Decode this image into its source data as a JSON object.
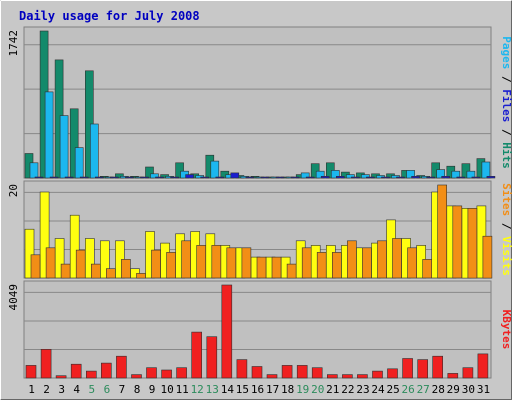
{
  "chart_data": {
    "type": "bar",
    "title": "Daily usage for July 2008",
    "categories": [
      "1",
      "2",
      "3",
      "4",
      "5",
      "6",
      "7",
      "8",
      "9",
      "10",
      "11",
      "12",
      "13",
      "14",
      "15",
      "16",
      "17",
      "18",
      "19",
      "20",
      "21",
      "22",
      "23",
      "24",
      "25",
      "26",
      "27",
      "28",
      "29",
      "30",
      "31"
    ],
    "weekend_days": [
      "5",
      "6",
      "12",
      "13",
      "19",
      "20",
      "26",
      "27"
    ],
    "panels": [
      {
        "id": "hits-files-pages",
        "ymax_label": "1742",
        "ymax": 1742,
        "axis_labels": [
          "Pages",
          "Files",
          "Hits"
        ],
        "series": [
          {
            "name": "Hits",
            "color": "#138a6b",
            "values": [
              290,
              1742,
              1400,
              820,
              1270,
              20,
              50,
              20,
              130,
              40,
              180,
              50,
              270,
              80,
              30,
              20,
              10,
              10,
              40,
              170,
              180,
              70,
              60,
              50,
              50,
              90,
              30,
              180,
              140,
              170,
              230
            ]
          },
          {
            "name": "Files",
            "color": "#1cb7ef",
            "values": [
              180,
              1020,
              740,
              360,
              640,
              10,
              20,
              10,
              50,
              20,
              80,
              30,
              200,
              40,
              20,
              10,
              5,
              5,
              60,
              80,
              90,
              40,
              40,
              30,
              30,
              90,
              20,
              100,
              80,
              80,
              190
            ]
          },
          {
            "name": "Pages",
            "color": "#1a1ecf",
            "values": [
              5,
              10,
              5,
              5,
              5,
              2,
              2,
              2,
              10,
              5,
              40,
              5,
              10,
              60,
              10,
              5,
              2,
              2,
              10,
              20,
              20,
              10,
              10,
              10,
              10,
              20,
              5,
              20,
              10,
              10,
              20
            ]
          }
        ]
      },
      {
        "id": "visits-sites",
        "ymax_label": "20",
        "ymax": 20,
        "axis_labels": [
          "Sites",
          "Visits"
        ],
        "series": [
          {
            "name": "Visits",
            "color": "#ffff10",
            "values": [
              10.5,
              18.5,
              8.5,
              13.5,
              8.5,
              8,
              8,
              2,
              10,
              7.5,
              9.5,
              10,
              9.5,
              7,
              6.5,
              4.5,
              4.5,
              4.5,
              8,
              7,
              7,
              7,
              6.5,
              7.5,
              12.5,
              8.5,
              7,
              18.5,
              15.5,
              15,
              15.5
            ]
          },
          {
            "name": "Sites",
            "color": "#f28e16",
            "values": [
              5,
              6.5,
              3,
              6,
              3,
              2,
              4,
              1,
              6,
              5.5,
              8,
              7,
              7,
              6.5,
              6.5,
              4.5,
              4.5,
              3,
              6.5,
              5.5,
              5.5,
              8,
              6.5,
              8,
              8.5,
              6.5,
              4,
              20,
              15.5,
              15,
              9
            ]
          }
        ]
      },
      {
        "id": "kbytes",
        "ymax_label": "4049",
        "ymax": 4049,
        "axis_labels": [
          "KBytes"
        ],
        "series": [
          {
            "name": "KBytes",
            "color": "#f02020",
            "values": [
              550,
              1250,
              100,
              600,
              300,
              650,
              950,
              150,
              450,
              350,
              450,
              2000,
              1800,
              4049,
              800,
              500,
              150,
              550,
              550,
              450,
              150,
              150,
              150,
              300,
              400,
              850,
              800,
              950,
              200,
              450,
              1050
            ]
          }
        ]
      }
    ]
  }
}
